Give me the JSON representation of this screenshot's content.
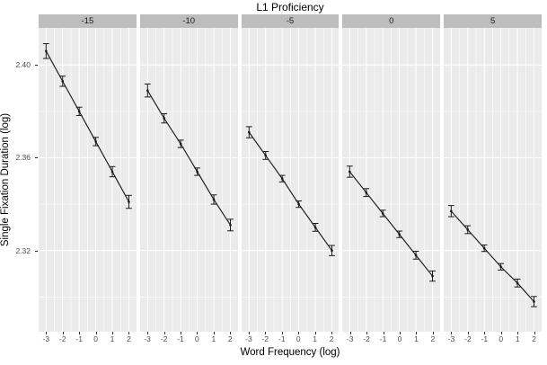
{
  "chart_data": {
    "type": "line",
    "title": "L1 Proficiency",
    "xlabel": "Word Frequency (log)",
    "ylabel": "Single Fixation Duration (log)",
    "facet_variable": "L1 Proficiency",
    "legend": "none",
    "grid": true,
    "error_bars": true,
    "x": [
      -3,
      -2,
      -1,
      0,
      1,
      2
    ],
    "x_tick_labels": [
      "-3",
      "-2",
      "-1",
      "0",
      "1",
      "2"
    ],
    "x_minor": [
      -2.5,
      -1.5,
      -0.5,
      0.5,
      1.5
    ],
    "y_ticks": [
      2.32,
      2.36,
      2.4
    ],
    "y_tick_labels": [
      "2.32",
      "2.36",
      "2.40"
    ],
    "y_minor": [
      2.3,
      2.34,
      2.38
    ],
    "xlim": [
      -3.45,
      2.45
    ],
    "ylim": [
      2.285,
      2.416
    ],
    "facets": [
      {
        "label": "-15",
        "values": [
          2.406,
          2.393,
          2.38,
          2.367,
          2.354,
          2.341
        ],
        "se": [
          0.0032,
          0.0022,
          0.0018,
          0.0018,
          0.0022,
          0.0028
        ]
      },
      {
        "label": "-10",
        "values": [
          2.389,
          2.377,
          2.366,
          2.354,
          2.342,
          2.331
        ],
        "se": [
          0.0028,
          0.002,
          0.0016,
          0.0016,
          0.002,
          0.0025
        ]
      },
      {
        "label": "-5",
        "values": [
          2.371,
          2.361,
          2.351,
          2.34,
          2.33,
          2.32
        ],
        "se": [
          0.0024,
          0.0017,
          0.0014,
          0.0014,
          0.0017,
          0.0022
        ]
      },
      {
        "label": "0",
        "values": [
          2.354,
          2.345,
          2.336,
          2.327,
          2.318,
          2.309
        ],
        "se": [
          0.0024,
          0.0017,
          0.0014,
          0.0014,
          0.0017,
          0.0022
        ]
      },
      {
        "label": "5",
        "values": [
          2.337,
          2.329,
          2.321,
          2.313,
          2.306,
          2.298
        ],
        "se": [
          0.0024,
          0.0017,
          0.0014,
          0.0014,
          0.0017,
          0.0022
        ]
      }
    ],
    "colors": {
      "panel_bg": "#ebebeb",
      "strip_bg": "#bdbdbd",
      "grid_major": "#ffffff",
      "grid_minor": "#ffffff",
      "series": "#1a1a1a",
      "axis_text": "#4d4d4d",
      "tick_mark": "#333333",
      "title_text": "#000000"
    }
  }
}
